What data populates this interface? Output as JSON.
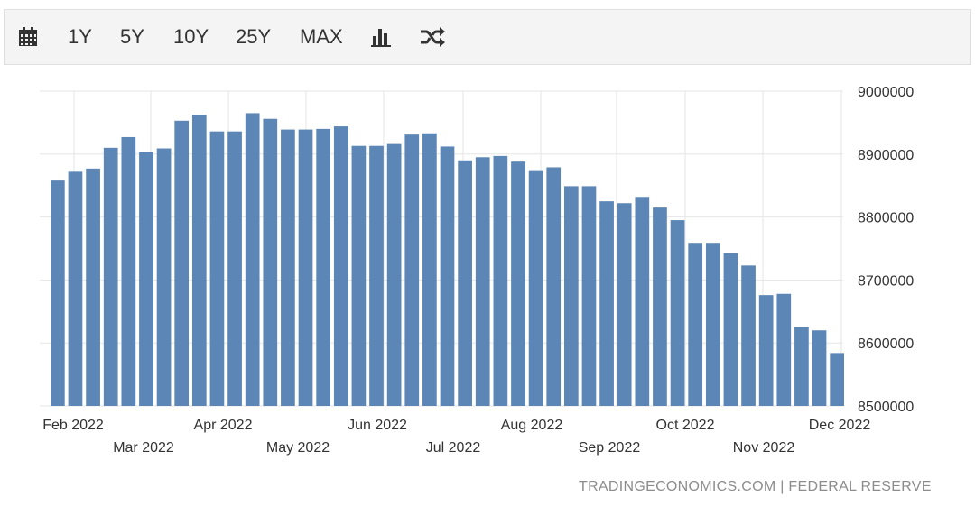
{
  "toolbar": {
    "calendar_icon": "calendar-icon",
    "ranges": [
      "1Y",
      "5Y",
      "10Y",
      "25Y",
      "MAX"
    ],
    "chart_type_icon": "bar-chart-icon",
    "shuffle_icon": "shuffle-icon"
  },
  "source": {
    "site": "TRADINGECONOMICS.COM",
    "separator": "|",
    "provider": "FEDERAL RESERVE"
  },
  "colors": {
    "bar": "#5b86b5",
    "grid": "#e6e6e6",
    "text": "#333333"
  },
  "chart_data": {
    "type": "bar",
    "ylim": [
      8500000,
      9000000
    ],
    "yticks": [
      "8500000",
      "8600000",
      "8700000",
      "8800000",
      "8900000",
      "9000000"
    ],
    "xticks_top": [
      "Feb 2022",
      "Apr 2022",
      "Jun 2022",
      "Aug 2022",
      "Oct 2022",
      "Dec 2022"
    ],
    "xticks_bottom": [
      "Mar 2022",
      "May 2022",
      "Jul 2022",
      "Sep 2022",
      "Nov 2022"
    ],
    "grid": true,
    "values": [
      8858000,
      8872000,
      8877000,
      8910000,
      8927000,
      8903000,
      8909000,
      8953000,
      8962000,
      8936000,
      8936000,
      8965000,
      8956000,
      8939000,
      8939000,
      8940000,
      8944000,
      8913000,
      8913000,
      8916000,
      8931000,
      8933000,
      8912000,
      8890000,
      8895000,
      8897000,
      8888000,
      8873000,
      8879000,
      8849000,
      8849000,
      8825000,
      8822000,
      8832000,
      8815000,
      8795000,
      8759000,
      8759000,
      8743000,
      8723000,
      8676000,
      8678000,
      8625000,
      8620000,
      8584000
    ]
  }
}
